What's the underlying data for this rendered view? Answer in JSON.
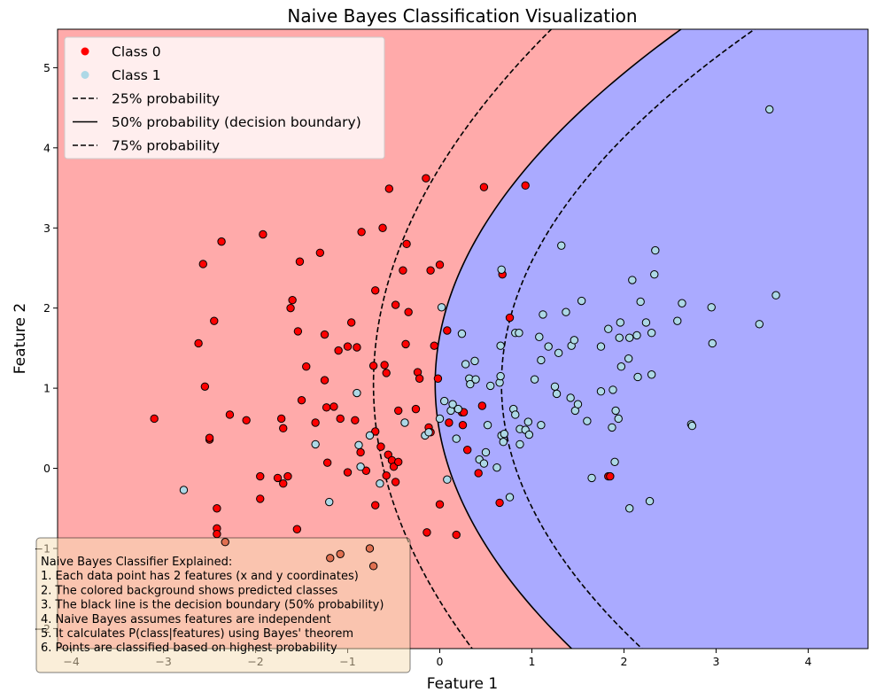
{
  "chart_data": {
    "type": "scatter",
    "title": "Naive Bayes Classification Visualization",
    "xlabel": "Feature 1",
    "ylabel": "Feature 2",
    "xlim": [
      -4.15,
      4.65
    ],
    "ylim": [
      -2.25,
      5.48
    ],
    "xticks": [
      -4,
      -3,
      -2,
      -1,
      0,
      1,
      2,
      3,
      4
    ],
    "xtick_labels": [
      "−4",
      "−3",
      "−2",
      "−1",
      "0",
      "1",
      "2",
      "3",
      "4"
    ],
    "yticks": [
      -2,
      -1,
      0,
      1,
      2,
      3,
      4,
      5
    ],
    "ytick_labels": [
      "−2",
      "−1",
      "0",
      "1",
      "2",
      "3",
      "4",
      "5"
    ],
    "grid": false,
    "legend_position": "top-left",
    "region_colors": {
      "class_0": "#ffaaaa",
      "class_1": "#aaaaff"
    },
    "series": [
      {
        "name": "Class 0",
        "color": "#ff0000",
        "legend_color": "#ff0000",
        "points": [
          [
            -3.1,
            0.62
          ],
          [
            -2.62,
            1.56
          ],
          [
            -2.57,
            2.55
          ],
          [
            -2.55,
            1.02
          ],
          [
            -2.5,
            0.36
          ],
          [
            -2.5,
            0.38
          ],
          [
            -2.45,
            1.84
          ],
          [
            -2.42,
            -0.5
          ],
          [
            -2.42,
            -0.75
          ],
          [
            -2.42,
            -0.82
          ],
          [
            -2.37,
            2.83
          ],
          [
            -2.28,
            0.67
          ],
          [
            -2.1,
            0.6
          ],
          [
            -1.95,
            -0.1
          ],
          [
            -1.95,
            -0.38
          ],
          [
            -1.92,
            2.92
          ],
          [
            -1.76,
            -0.12
          ],
          [
            -1.72,
            0.62
          ],
          [
            -1.7,
            0.5
          ],
          [
            -1.7,
            -0.19
          ],
          [
            -1.65,
            -0.1
          ],
          [
            -1.62,
            2.0
          ],
          [
            -1.6,
            2.1
          ],
          [
            -1.55,
            -0.76
          ],
          [
            -1.54,
            1.71
          ],
          [
            -1.52,
            2.58
          ],
          [
            -1.5,
            0.85
          ],
          [
            -1.45,
            1.27
          ],
          [
            -1.35,
            0.57
          ],
          [
            -1.3,
            2.69
          ],
          [
            -1.25,
            1.67
          ],
          [
            -1.25,
            1.1
          ],
          [
            -1.23,
            0.76
          ],
          [
            -1.22,
            0.07
          ],
          [
            -1.15,
            0.77
          ],
          [
            -1.1,
            1.47
          ],
          [
            -1.08,
            0.62
          ],
          [
            -1.0,
            1.52
          ],
          [
            -1.0,
            -0.05
          ],
          [
            -0.96,
            1.82
          ],
          [
            -0.92,
            0.6
          ],
          [
            -0.9,
            1.51
          ],
          [
            -0.86,
            0.2
          ],
          [
            -0.85,
            2.95
          ],
          [
            -0.8,
            -0.03
          ],
          [
            -0.72,
            1.28
          ],
          [
            -0.7,
            2.22
          ],
          [
            -0.7,
            -0.46
          ],
          [
            -0.7,
            0.46
          ],
          [
            -0.64,
            0.27
          ],
          [
            -0.62,
            3.0
          ],
          [
            -0.6,
            1.29
          ],
          [
            -0.58,
            1.19
          ],
          [
            -0.58,
            -0.09
          ],
          [
            -0.56,
            0.17
          ],
          [
            -0.55,
            3.49
          ],
          [
            -0.52,
            0.1
          ],
          [
            -0.5,
            0.02
          ],
          [
            -0.48,
            -0.17
          ],
          [
            -0.48,
            2.04
          ],
          [
            -0.45,
            0.08
          ],
          [
            -0.45,
            0.72
          ],
          [
            -0.4,
            2.47
          ],
          [
            -0.37,
            1.55
          ],
          [
            -0.36,
            2.8
          ],
          [
            -0.34,
            1.95
          ],
          [
            -0.26,
            0.74
          ],
          [
            -0.24,
            1.2
          ],
          [
            -0.22,
            1.12
          ],
          [
            -0.15,
            3.62
          ],
          [
            -0.14,
            -0.8
          ],
          [
            -0.12,
            0.51
          ],
          [
            -0.1,
            0.45
          ],
          [
            -0.1,
            2.47
          ],
          [
            -0.06,
            1.53
          ],
          [
            -0.02,
            1.12
          ],
          [
            0.0,
            2.54
          ],
          [
            0.0,
            -0.45
          ],
          [
            0.08,
            1.72
          ],
          [
            0.1,
            0.57
          ],
          [
            0.18,
            -0.83
          ],
          [
            0.24,
            0.7
          ],
          [
            0.25,
            0.54
          ],
          [
            0.26,
            0.7
          ],
          [
            0.3,
            0.23
          ],
          [
            0.42,
            -0.06
          ],
          [
            0.46,
            0.78
          ],
          [
            0.48,
            3.51
          ],
          [
            0.65,
            -0.43
          ],
          [
            0.68,
            2.42
          ],
          [
            0.76,
            1.88
          ],
          [
            0.93,
            3.53
          ],
          [
            1.83,
            -0.1
          ],
          [
            1.85,
            -0.1
          ]
        ]
      },
      {
        "name": "Class 1",
        "color": "#add8e6",
        "legend_color": "#add8e6",
        "points": [
          [
            -2.78,
            -0.27
          ],
          [
            -1.35,
            0.3
          ],
          [
            -1.2,
            -0.42
          ],
          [
            -0.9,
            0.94
          ],
          [
            -0.88,
            0.29
          ],
          [
            -0.86,
            0.02
          ],
          [
            -0.76,
            0.41
          ],
          [
            -0.65,
            -0.19
          ],
          [
            -0.38,
            0.57
          ],
          [
            -0.16,
            0.41
          ],
          [
            -0.12,
            0.45
          ],
          [
            0.0,
            0.62
          ],
          [
            0.02,
            2.01
          ],
          [
            0.05,
            0.84
          ],
          [
            0.08,
            -0.14
          ],
          [
            0.12,
            0.72
          ],
          [
            0.14,
            0.8
          ],
          [
            0.18,
            0.37
          ],
          [
            0.2,
            0.74
          ],
          [
            0.24,
            1.68
          ],
          [
            0.28,
            1.3
          ],
          [
            0.32,
            1.12
          ],
          [
            0.33,
            1.05
          ],
          [
            0.38,
            1.34
          ],
          [
            0.39,
            1.11
          ],
          [
            0.43,
            0.11
          ],
          [
            0.48,
            0.06
          ],
          [
            0.5,
            0.2
          ],
          [
            0.52,
            0.54
          ],
          [
            0.55,
            1.03
          ],
          [
            0.62,
            0.01
          ],
          [
            0.65,
            1.07
          ],
          [
            0.66,
            1.15
          ],
          [
            0.66,
            1.53
          ],
          [
            0.67,
            2.48
          ],
          [
            0.67,
            0.41
          ],
          [
            0.69,
            0.33
          ],
          [
            0.7,
            0.43
          ],
          [
            0.76,
            -0.36
          ],
          [
            0.8,
            0.74
          ],
          [
            0.82,
            1.69
          ],
          [
            0.82,
            0.67
          ],
          [
            0.86,
            1.69
          ],
          [
            0.87,
            0.49
          ],
          [
            0.87,
            0.3
          ],
          [
            0.93,
            0.48
          ],
          [
            0.96,
            0.58
          ],
          [
            0.97,
            0.42
          ],
          [
            1.03,
            1.11
          ],
          [
            1.08,
            1.64
          ],
          [
            1.1,
            1.35
          ],
          [
            1.1,
            0.54
          ],
          [
            1.12,
            1.92
          ],
          [
            1.18,
            1.52
          ],
          [
            1.25,
            1.02
          ],
          [
            1.27,
            0.93
          ],
          [
            1.29,
            1.44
          ],
          [
            1.32,
            2.78
          ],
          [
            1.37,
            1.95
          ],
          [
            1.42,
            0.88
          ],
          [
            1.43,
            1.53
          ],
          [
            1.46,
            1.6
          ],
          [
            1.47,
            0.72
          ],
          [
            1.5,
            0.8
          ],
          [
            1.54,
            2.09
          ],
          [
            1.6,
            0.59
          ],
          [
            1.65,
            -0.12
          ],
          [
            1.75,
            0.96
          ],
          [
            1.75,
            1.52
          ],
          [
            1.83,
            1.74
          ],
          [
            1.87,
            0.51
          ],
          [
            1.88,
            0.98
          ],
          [
            1.9,
            0.08
          ],
          [
            1.91,
            0.72
          ],
          [
            1.94,
            0.62
          ],
          [
            1.95,
            1.63
          ],
          [
            1.96,
            1.82
          ],
          [
            1.97,
            1.27
          ],
          [
            2.05,
            1.37
          ],
          [
            2.06,
            -0.5
          ],
          [
            2.06,
            1.63
          ],
          [
            2.09,
            2.35
          ],
          [
            2.14,
            1.66
          ],
          [
            2.15,
            1.14
          ],
          [
            2.18,
            2.08
          ],
          [
            2.24,
            1.82
          ],
          [
            2.28,
            -0.41
          ],
          [
            2.3,
            1.69
          ],
          [
            2.3,
            1.17
          ],
          [
            2.33,
            2.42
          ],
          [
            2.34,
            2.72
          ],
          [
            2.58,
            1.84
          ],
          [
            2.63,
            2.06
          ],
          [
            2.73,
            0.55
          ],
          [
            2.74,
            0.53
          ],
          [
            2.95,
            2.01
          ],
          [
            2.96,
            1.56
          ],
          [
            3.47,
            1.8
          ],
          [
            3.58,
            4.48
          ],
          [
            3.65,
            2.16
          ]
        ]
      }
    ],
    "faded_points": [
      [
        -2.33,
        -0.92
      ],
      [
        -1.19,
        -1.12
      ],
      [
        -1.08,
        -1.07
      ],
      [
        -0.76,
        -1.0
      ],
      [
        -0.72,
        -1.22
      ]
    ],
    "contours": [
      {
        "label": "25% probability",
        "style": "dashed",
        "vertex": [
          -0.72,
          1.05
        ],
        "points": [
          [
            -0.72,
            1.05
          ],
          [
            -0.5,
            2.6
          ],
          [
            0.0,
            3.8
          ],
          [
            1.0,
            5.2
          ],
          [
            1.2,
            5.48
          ]
        ]
      },
      {
        "label": "50% probability (decision boundary)",
        "style": "solid",
        "vertex": [
          -0.05,
          1.05
        ],
        "points": [
          [
            -0.05,
            1.05
          ],
          [
            0.3,
            2.45
          ],
          [
            1.0,
            3.8
          ],
          [
            2.0,
            5.0
          ],
          [
            2.66,
            5.48
          ]
        ]
      },
      {
        "label": "75% probability",
        "style": "dashed",
        "vertex": [
          0.67,
          1.05
        ],
        "points": [
          [
            0.67,
            1.05
          ],
          [
            1.0,
            2.0
          ],
          [
            1.8,
            3.7
          ],
          [
            2.8,
            5.0
          ],
          [
            3.4,
            5.48
          ]
        ]
      }
    ]
  },
  "legend": [
    {
      "label": "Class 0",
      "kind": "marker",
      "color": "#ff0000"
    },
    {
      "label": "Class 1",
      "kind": "marker",
      "color": "#add8e6"
    },
    {
      "label": "25% probability",
      "kind": "dashed"
    },
    {
      "label": "50% probability (decision boundary)",
      "kind": "solid"
    },
    {
      "label": "75% probability",
      "kind": "dashed"
    }
  ],
  "note": {
    "lines": [
      "Naive Bayes Classifier Explained:",
      "1. Each data point has 2 features (x and y coordinates)",
      "2. The colored background shows predicted classes",
      "3. The black line is the decision boundary (50% probability)",
      "4. Naive Bayes assumes features are independent",
      "5. It calculates P(class|features) using Bayes' theorem",
      "6. Points are classified based on highest probability"
    ],
    "bg_color": "#f5deb3"
  }
}
